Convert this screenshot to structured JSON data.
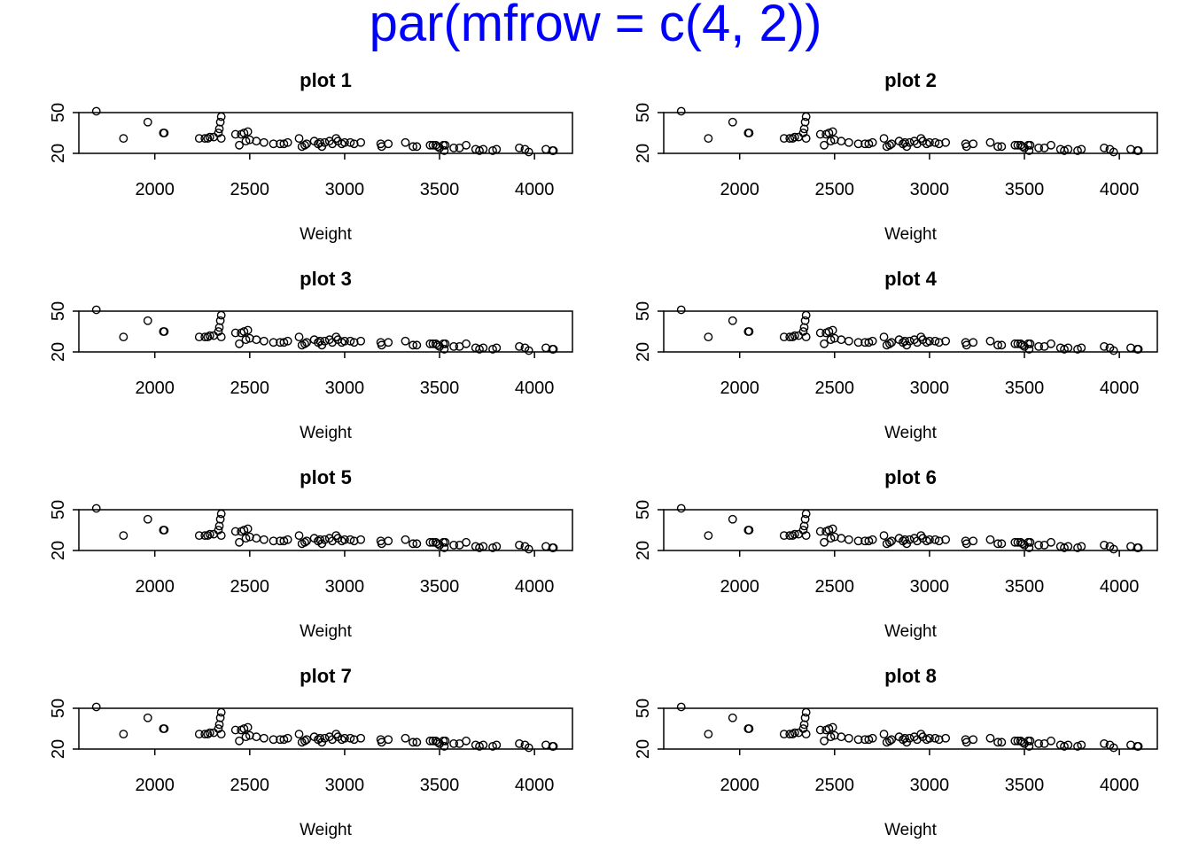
{
  "page_title": "par(mfrow = c(4, 2))",
  "colors": {
    "title": "#0000FF",
    "ink": "#000000",
    "background": "#FFFFFF"
  },
  "x_ticks": [
    "2000",
    "2500",
    "3000",
    "3500",
    "4000"
  ],
  "y_ticks": [
    "20",
    "50"
  ],
  "xlabel": "Weight",
  "chart_data": [
    {
      "type": "scatter",
      "title": "plot 1",
      "xlabel": "Weight",
      "ylabel": "",
      "xlim": [
        1600,
        4200
      ],
      "ylim": [
        20,
        50
      ],
      "grid": false,
      "marker": "open-circle",
      "x": [
        1692,
        1835,
        1963,
        2045,
        2050,
        2234,
        2264,
        2279,
        2290,
        2310,
        2335,
        2340,
        2345,
        2350,
        2350,
        2425,
        2445,
        2455,
        2470,
        2480,
        2490,
        2500,
        2535,
        2575,
        2625,
        2660,
        2680,
        2700,
        2760,
        2775,
        2790,
        2800,
        2840,
        2860,
        2870,
        2880,
        2895,
        2920,
        2935,
        2955,
        2965,
        2985,
        3000,
        3030,
        3050,
        3085,
        3190,
        3195,
        3230,
        3320,
        3360,
        3380,
        3450,
        3465,
        3480,
        3490,
        3500,
        3520,
        3525,
        3530,
        3575,
        3605,
        3640,
        3690,
        3710,
        3730,
        3780,
        3800,
        3920,
        3950,
        3970,
        4060,
        4095,
        4100
      ],
      "y": [
        51,
        31,
        43,
        35,
        35,
        31,
        31,
        31,
        32,
        32,
        35,
        38,
        43,
        47,
        31,
        34,
        26,
        34,
        35,
        29,
        36,
        30,
        29,
        28,
        27,
        27,
        27,
        28,
        31,
        25,
        26,
        27,
        29,
        27,
        28,
        25,
        28,
        29,
        27,
        31,
        29,
        27,
        28,
        28,
        27,
        28,
        27,
        25,
        27,
        28,
        25,
        25,
        26,
        26,
        26,
        25,
        24,
        26,
        22,
        26,
        24,
        24,
        26,
        23,
        22,
        23,
        22,
        23,
        24,
        23,
        21,
        23,
        22,
        22
      ]
    },
    {
      "type": "scatter",
      "title": "plot 2",
      "xlabel": "Weight",
      "ylabel": "",
      "xlim": [
        1600,
        4200
      ],
      "ylim": [
        20,
        50
      ],
      "grid": false,
      "marker": "open-circle",
      "x": [
        1692,
        1835,
        1963,
        2045,
        2050,
        2234,
        2264,
        2279,
        2290,
        2310,
        2335,
        2340,
        2345,
        2350,
        2350,
        2425,
        2445,
        2455,
        2470,
        2480,
        2490,
        2500,
        2535,
        2575,
        2625,
        2660,
        2680,
        2700,
        2760,
        2775,
        2790,
        2800,
        2840,
        2860,
        2870,
        2880,
        2895,
        2920,
        2935,
        2955,
        2965,
        2985,
        3000,
        3030,
        3050,
        3085,
        3190,
        3195,
        3230,
        3320,
        3360,
        3380,
        3450,
        3465,
        3480,
        3490,
        3500,
        3520,
        3525,
        3530,
        3575,
        3605,
        3640,
        3690,
        3710,
        3730,
        3780,
        3800,
        3920,
        3950,
        3970,
        4060,
        4095,
        4100
      ],
      "y": [
        51,
        31,
        43,
        35,
        35,
        31,
        31,
        31,
        32,
        32,
        35,
        38,
        43,
        47,
        31,
        34,
        26,
        34,
        35,
        29,
        36,
        30,
        29,
        28,
        27,
        27,
        27,
        28,
        31,
        25,
        26,
        27,
        29,
        27,
        28,
        25,
        28,
        29,
        27,
        31,
        29,
        27,
        28,
        28,
        27,
        28,
        27,
        25,
        27,
        28,
        25,
        25,
        26,
        26,
        26,
        25,
        24,
        26,
        22,
        26,
        24,
        24,
        26,
        23,
        22,
        23,
        22,
        23,
        24,
        23,
        21,
        23,
        22,
        22
      ]
    },
    {
      "type": "scatter",
      "title": "plot 3",
      "xlabel": "Weight",
      "ylabel": "",
      "xlim": [
        1600,
        4200
      ],
      "ylim": [
        20,
        50
      ],
      "grid": false,
      "marker": "open-circle",
      "x": [
        1692,
        1835,
        1963,
        2045,
        2050,
        2234,
        2264,
        2279,
        2290,
        2310,
        2335,
        2340,
        2345,
        2350,
        2350,
        2425,
        2445,
        2455,
        2470,
        2480,
        2490,
        2500,
        2535,
        2575,
        2625,
        2660,
        2680,
        2700,
        2760,
        2775,
        2790,
        2800,
        2840,
        2860,
        2870,
        2880,
        2895,
        2920,
        2935,
        2955,
        2965,
        2985,
        3000,
        3030,
        3050,
        3085,
        3190,
        3195,
        3230,
        3320,
        3360,
        3380,
        3450,
        3465,
        3480,
        3490,
        3500,
        3520,
        3525,
        3530,
        3575,
        3605,
        3640,
        3690,
        3710,
        3730,
        3780,
        3800,
        3920,
        3950,
        3970,
        4060,
        4095,
        4100
      ],
      "y": [
        51,
        31,
        43,
        35,
        35,
        31,
        31,
        31,
        32,
        32,
        35,
        38,
        43,
        47,
        31,
        34,
        26,
        34,
        35,
        29,
        36,
        30,
        29,
        28,
        27,
        27,
        27,
        28,
        31,
        25,
        26,
        27,
        29,
        27,
        28,
        25,
        28,
        29,
        27,
        31,
        29,
        27,
        28,
        28,
        27,
        28,
        27,
        25,
        27,
        28,
        25,
        25,
        26,
        26,
        26,
        25,
        24,
        26,
        22,
        26,
        24,
        24,
        26,
        23,
        22,
        23,
        22,
        23,
        24,
        23,
        21,
        23,
        22,
        22
      ]
    },
    {
      "type": "scatter",
      "title": "plot 4",
      "xlabel": "Weight",
      "ylabel": "",
      "xlim": [
        1600,
        4200
      ],
      "ylim": [
        20,
        50
      ],
      "grid": false,
      "marker": "open-circle",
      "x": [
        1692,
        1835,
        1963,
        2045,
        2050,
        2234,
        2264,
        2279,
        2290,
        2310,
        2335,
        2340,
        2345,
        2350,
        2350,
        2425,
        2445,
        2455,
        2470,
        2480,
        2490,
        2500,
        2535,
        2575,
        2625,
        2660,
        2680,
        2700,
        2760,
        2775,
        2790,
        2800,
        2840,
        2860,
        2870,
        2880,
        2895,
        2920,
        2935,
        2955,
        2965,
        2985,
        3000,
        3030,
        3050,
        3085,
        3190,
        3195,
        3230,
        3320,
        3360,
        3380,
        3450,
        3465,
        3480,
        3490,
        3500,
        3520,
        3525,
        3530,
        3575,
        3605,
        3640,
        3690,
        3710,
        3730,
        3780,
        3800,
        3920,
        3950,
        3970,
        4060,
        4095,
        4100
      ],
      "y": [
        51,
        31,
        43,
        35,
        35,
        31,
        31,
        31,
        32,
        32,
        35,
        38,
        43,
        47,
        31,
        34,
        26,
        34,
        35,
        29,
        36,
        30,
        29,
        28,
        27,
        27,
        27,
        28,
        31,
        25,
        26,
        27,
        29,
        27,
        28,
        25,
        28,
        29,
        27,
        31,
        29,
        27,
        28,
        28,
        27,
        28,
        27,
        25,
        27,
        28,
        25,
        25,
        26,
        26,
        26,
        25,
        24,
        26,
        22,
        26,
        24,
        24,
        26,
        23,
        22,
        23,
        22,
        23,
        24,
        23,
        21,
        23,
        22,
        22
      ]
    },
    {
      "type": "scatter",
      "title": "plot 5",
      "xlabel": "Weight",
      "ylabel": "",
      "xlim": [
        1600,
        4200
      ],
      "ylim": [
        20,
        50
      ],
      "grid": false,
      "marker": "open-circle",
      "x": [
        1692,
        1835,
        1963,
        2045,
        2050,
        2234,
        2264,
        2279,
        2290,
        2310,
        2335,
        2340,
        2345,
        2350,
        2350,
        2425,
        2445,
        2455,
        2470,
        2480,
        2490,
        2500,
        2535,
        2575,
        2625,
        2660,
        2680,
        2700,
        2760,
        2775,
        2790,
        2800,
        2840,
        2860,
        2870,
        2880,
        2895,
        2920,
        2935,
        2955,
        2965,
        2985,
        3000,
        3030,
        3050,
        3085,
        3190,
        3195,
        3230,
        3320,
        3360,
        3380,
        3450,
        3465,
        3480,
        3490,
        3500,
        3520,
        3525,
        3530,
        3575,
        3605,
        3640,
        3690,
        3710,
        3730,
        3780,
        3800,
        3920,
        3950,
        3970,
        4060,
        4095,
        4100
      ],
      "y": [
        51,
        31,
        43,
        35,
        35,
        31,
        31,
        31,
        32,
        32,
        35,
        38,
        43,
        47,
        31,
        34,
        26,
        34,
        35,
        29,
        36,
        30,
        29,
        28,
        27,
        27,
        27,
        28,
        31,
        25,
        26,
        27,
        29,
        27,
        28,
        25,
        28,
        29,
        27,
        31,
        29,
        27,
        28,
        28,
        27,
        28,
        27,
        25,
        27,
        28,
        25,
        25,
        26,
        26,
        26,
        25,
        24,
        26,
        22,
        26,
        24,
        24,
        26,
        23,
        22,
        23,
        22,
        23,
        24,
        23,
        21,
        23,
        22,
        22
      ]
    },
    {
      "type": "scatter",
      "title": "plot 6",
      "xlabel": "Weight",
      "ylabel": "",
      "xlim": [
        1600,
        4200
      ],
      "ylim": [
        20,
        50
      ],
      "grid": false,
      "marker": "open-circle",
      "x": [
        1692,
        1835,
        1963,
        2045,
        2050,
        2234,
        2264,
        2279,
        2290,
        2310,
        2335,
        2340,
        2345,
        2350,
        2350,
        2425,
        2445,
        2455,
        2470,
        2480,
        2490,
        2500,
        2535,
        2575,
        2625,
        2660,
        2680,
        2700,
        2760,
        2775,
        2790,
        2800,
        2840,
        2860,
        2870,
        2880,
        2895,
        2920,
        2935,
        2955,
        2965,
        2985,
        3000,
        3030,
        3050,
        3085,
        3190,
        3195,
        3230,
        3320,
        3360,
        3380,
        3450,
        3465,
        3480,
        3490,
        3500,
        3520,
        3525,
        3530,
        3575,
        3605,
        3640,
        3690,
        3710,
        3730,
        3780,
        3800,
        3920,
        3950,
        3970,
        4060,
        4095,
        4100
      ],
      "y": [
        51,
        31,
        43,
        35,
        35,
        31,
        31,
        31,
        32,
        32,
        35,
        38,
        43,
        47,
        31,
        34,
        26,
        34,
        35,
        29,
        36,
        30,
        29,
        28,
        27,
        27,
        27,
        28,
        31,
        25,
        26,
        27,
        29,
        27,
        28,
        25,
        28,
        29,
        27,
        31,
        29,
        27,
        28,
        28,
        27,
        28,
        27,
        25,
        27,
        28,
        25,
        25,
        26,
        26,
        26,
        25,
        24,
        26,
        22,
        26,
        24,
        24,
        26,
        23,
        22,
        23,
        22,
        23,
        24,
        23,
        21,
        23,
        22,
        22
      ]
    },
    {
      "type": "scatter",
      "title": "plot 7",
      "xlabel": "Weight",
      "ylabel": "",
      "xlim": [
        1600,
        4200
      ],
      "ylim": [
        20,
        50
      ],
      "grid": false,
      "marker": "open-circle",
      "x": [
        1692,
        1835,
        1963,
        2045,
        2050,
        2234,
        2264,
        2279,
        2290,
        2310,
        2335,
        2340,
        2345,
        2350,
        2350,
        2425,
        2445,
        2455,
        2470,
        2480,
        2490,
        2500,
        2535,
        2575,
        2625,
        2660,
        2680,
        2700,
        2760,
        2775,
        2790,
        2800,
        2840,
        2860,
        2870,
        2880,
        2895,
        2920,
        2935,
        2955,
        2965,
        2985,
        3000,
        3030,
        3050,
        3085,
        3190,
        3195,
        3230,
        3320,
        3360,
        3380,
        3450,
        3465,
        3480,
        3490,
        3500,
        3520,
        3525,
        3530,
        3575,
        3605,
        3640,
        3690,
        3710,
        3730,
        3780,
        3800,
        3920,
        3950,
        3970,
        4060,
        4095,
        4100
      ],
      "y": [
        51,
        31,
        43,
        35,
        35,
        31,
        31,
        31,
        32,
        32,
        35,
        38,
        43,
        47,
        31,
        34,
        26,
        34,
        35,
        29,
        36,
        30,
        29,
        28,
        27,
        27,
        27,
        28,
        31,
        25,
        26,
        27,
        29,
        27,
        28,
        25,
        28,
        29,
        27,
        31,
        29,
        27,
        28,
        28,
        27,
        28,
        27,
        25,
        27,
        28,
        25,
        25,
        26,
        26,
        26,
        25,
        24,
        26,
        22,
        26,
        24,
        24,
        26,
        23,
        22,
        23,
        22,
        23,
        24,
        23,
        21,
        23,
        22,
        22
      ]
    },
    {
      "type": "scatter",
      "title": "plot 8",
      "xlabel": "Weight",
      "ylabel": "",
      "xlim": [
        1600,
        4200
      ],
      "ylim": [
        20,
        50
      ],
      "grid": false,
      "marker": "open-circle",
      "x": [
        1692,
        1835,
        1963,
        2045,
        2050,
        2234,
        2264,
        2279,
        2290,
        2310,
        2335,
        2340,
        2345,
        2350,
        2350,
        2425,
        2445,
        2455,
        2470,
        2480,
        2490,
        2500,
        2535,
        2575,
        2625,
        2660,
        2680,
        2700,
        2760,
        2775,
        2790,
        2800,
        2840,
        2860,
        2870,
        2880,
        2895,
        2920,
        2935,
        2955,
        2965,
        2985,
        3000,
        3030,
        3050,
        3085,
        3190,
        3195,
        3230,
        3320,
        3360,
        3380,
        3450,
        3465,
        3480,
        3490,
        3500,
        3520,
        3525,
        3530,
        3575,
        3605,
        3640,
        3690,
        3710,
        3730,
        3780,
        3800,
        3920,
        3950,
        3970,
        4060,
        4095,
        4100
      ],
      "y": [
        51,
        31,
        43,
        35,
        35,
        31,
        31,
        31,
        32,
        32,
        35,
        38,
        43,
        47,
        31,
        34,
        26,
        34,
        35,
        29,
        36,
        30,
        29,
        28,
        27,
        27,
        27,
        28,
        31,
        25,
        26,
        27,
        29,
        27,
        28,
        25,
        28,
        29,
        27,
        31,
        29,
        27,
        28,
        28,
        27,
        28,
        27,
        25,
        27,
        28,
        25,
        25,
        26,
        26,
        26,
        25,
        24,
        26,
        22,
        26,
        24,
        24,
        26,
        23,
        22,
        23,
        22,
        23,
        24,
        23,
        21,
        23,
        22,
        22
      ]
    }
  ]
}
